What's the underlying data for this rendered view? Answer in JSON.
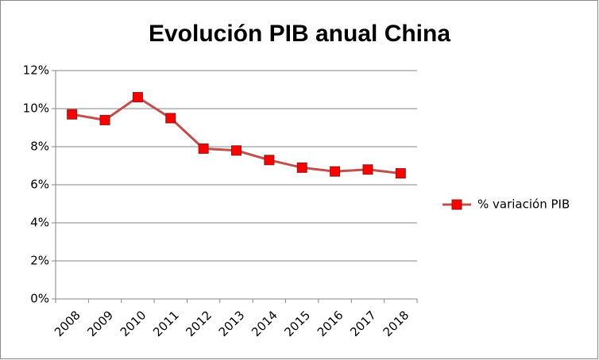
{
  "chart_data": {
    "type": "line",
    "title": "Evolución PIB anual China",
    "categories": [
      "2008",
      "2009",
      "2010",
      "2011",
      "2012",
      "2013",
      "2014",
      "2015",
      "2016",
      "2017",
      "2018"
    ],
    "series": [
      {
        "name": "% variación PIB",
        "color": "#c0504d",
        "marker_color": "#ff0000",
        "values": [
          9.7,
          9.4,
          10.6,
          9.5,
          7.9,
          7.8,
          7.3,
          6.9,
          6.7,
          6.8,
          6.6
        ]
      }
    ],
    "ylim": [
      0,
      12
    ],
    "yticks": [
      {
        "value": 0,
        "label": "0%"
      },
      {
        "value": 2,
        "label": "2%"
      },
      {
        "value": 4,
        "label": "4%"
      },
      {
        "value": 6,
        "label": "6%"
      },
      {
        "value": 8,
        "label": "8%"
      },
      {
        "value": 10,
        "label": "10%"
      },
      {
        "value": 12,
        "label": "12%"
      }
    ],
    "grid": true,
    "legend": "right"
  }
}
